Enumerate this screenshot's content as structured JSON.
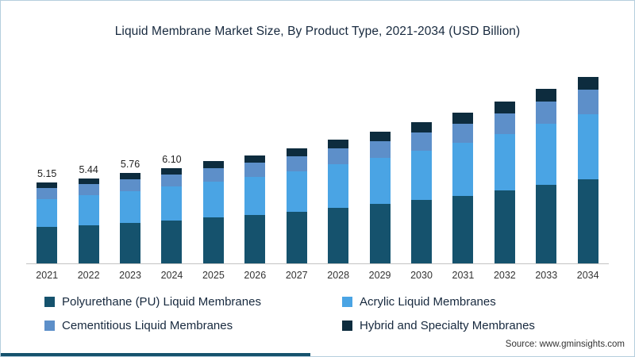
{
  "title": "Liquid Membrane Market Size, By Product Type, 2021-2034 (USD Billion)",
  "source": "Source: www.gminsights.com",
  "colors": {
    "polyurethane": "#15526d",
    "acrylic": "#4aa4e4",
    "cementitious": "#5d8fc9",
    "hybrid": "#0d2c3e",
    "accent": "#15526d",
    "frame_border": "#b5cede"
  },
  "chart_data": {
    "type": "bar",
    "stacked": true,
    "title": "Liquid Membrane Market Size, By Product Type, 2021-2034 (USD Billion)",
    "xlabel": "",
    "ylabel": "USD Billion",
    "ylim": [
      0,
      12.4
    ],
    "grid": false,
    "legend_position": "bottom",
    "categories": [
      "2021",
      "2022",
      "2023",
      "2024",
      "2025",
      "2026",
      "2027",
      "2028",
      "2029",
      "2030",
      "2031",
      "2032",
      "2033",
      "2034"
    ],
    "value_labels": [
      "5.15",
      "5.44",
      "5.76",
      "6.10",
      null,
      null,
      null,
      null,
      null,
      null,
      null,
      null,
      null,
      null
    ],
    "totals": [
      5.15,
      5.44,
      5.76,
      6.1,
      6.51,
      6.91,
      7.35,
      7.91,
      8.4,
      9.0,
      9.6,
      10.31,
      11.11,
      11.91
    ],
    "series": [
      {
        "name": "Polyurethane (PU) Liquid Membranes",
        "color": "#15526d",
        "values": [
          2.32,
          2.45,
          2.59,
          2.75,
          2.93,
          3.11,
          3.31,
          3.56,
          3.78,
          4.05,
          4.32,
          4.64,
          5.0,
          5.36
        ]
      },
      {
        "name": "Acrylic Liquid Membranes",
        "color": "#4aa4e4",
        "values": [
          1.8,
          1.9,
          2.02,
          2.14,
          2.28,
          2.42,
          2.57,
          2.77,
          2.94,
          3.15,
          3.36,
          3.61,
          3.89,
          4.17
        ]
      },
      {
        "name": "Cementitious Liquid Membranes",
        "color": "#5d8fc9",
        "values": [
          0.67,
          0.71,
          0.75,
          0.79,
          0.85,
          0.9,
          0.96,
          1.03,
          1.09,
          1.17,
          1.25,
          1.34,
          1.44,
          1.55
        ]
      },
      {
        "name": "Hybrid and Specialty Membranes",
        "color": "#0d2c3e",
        "values": [
          0.36,
          0.38,
          0.4,
          0.42,
          0.45,
          0.48,
          0.51,
          0.55,
          0.59,
          0.63,
          0.67,
          0.72,
          0.78,
          0.83
        ]
      }
    ]
  }
}
